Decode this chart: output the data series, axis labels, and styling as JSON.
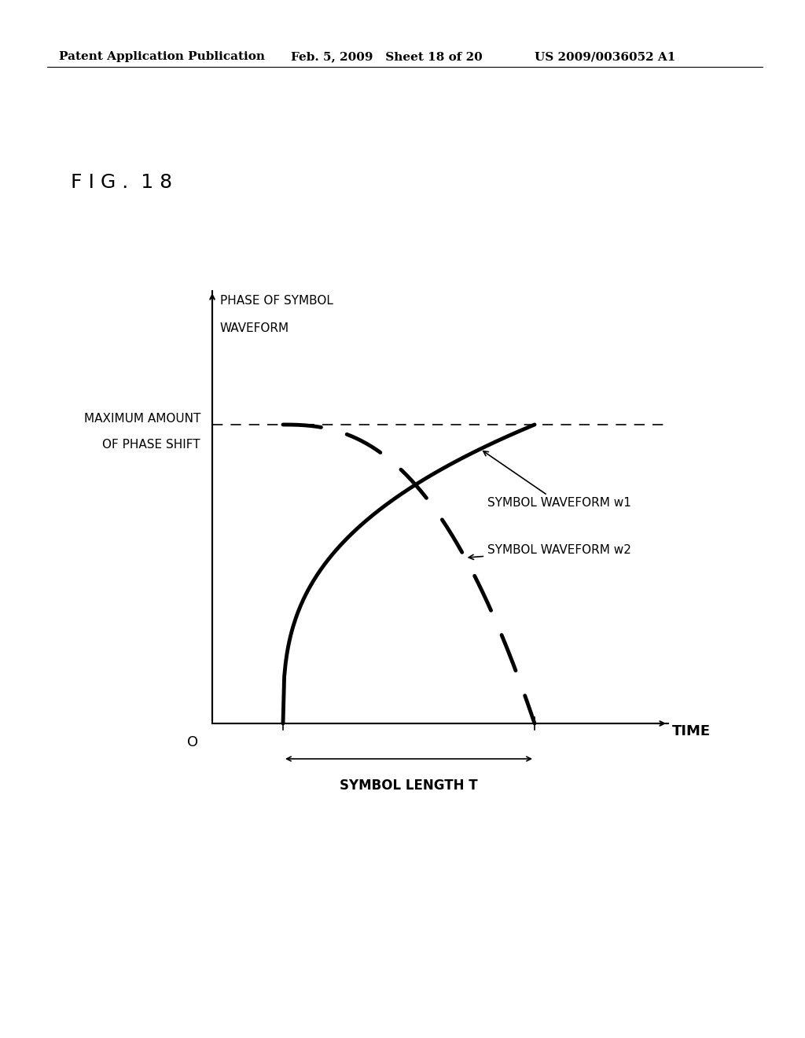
{
  "background_color": "#ffffff",
  "header_left": "Patent Application Publication",
  "header_mid": "Feb. 5, 2009   Sheet 18 of 20",
  "header_right": "US 2009/0036052 A1",
  "fig_label": "F I G .  1 8",
  "y_axis_label_line1": "PHASE OF SYMBOL",
  "y_axis_label_line2": "WAVEFORM",
  "x_axis_label": "TIME",
  "max_phase_label_line1": "MAXIMUM AMOUNT",
  "max_phase_label_line2": "OF PHASE SHIFT",
  "symbol_length_label": "SYMBOL LENGTH T",
  "w1_label": "SYMBOL WAVEFORM w1",
  "w2_label": "SYMBOL WAVEFORM w2",
  "origin_label": "O"
}
